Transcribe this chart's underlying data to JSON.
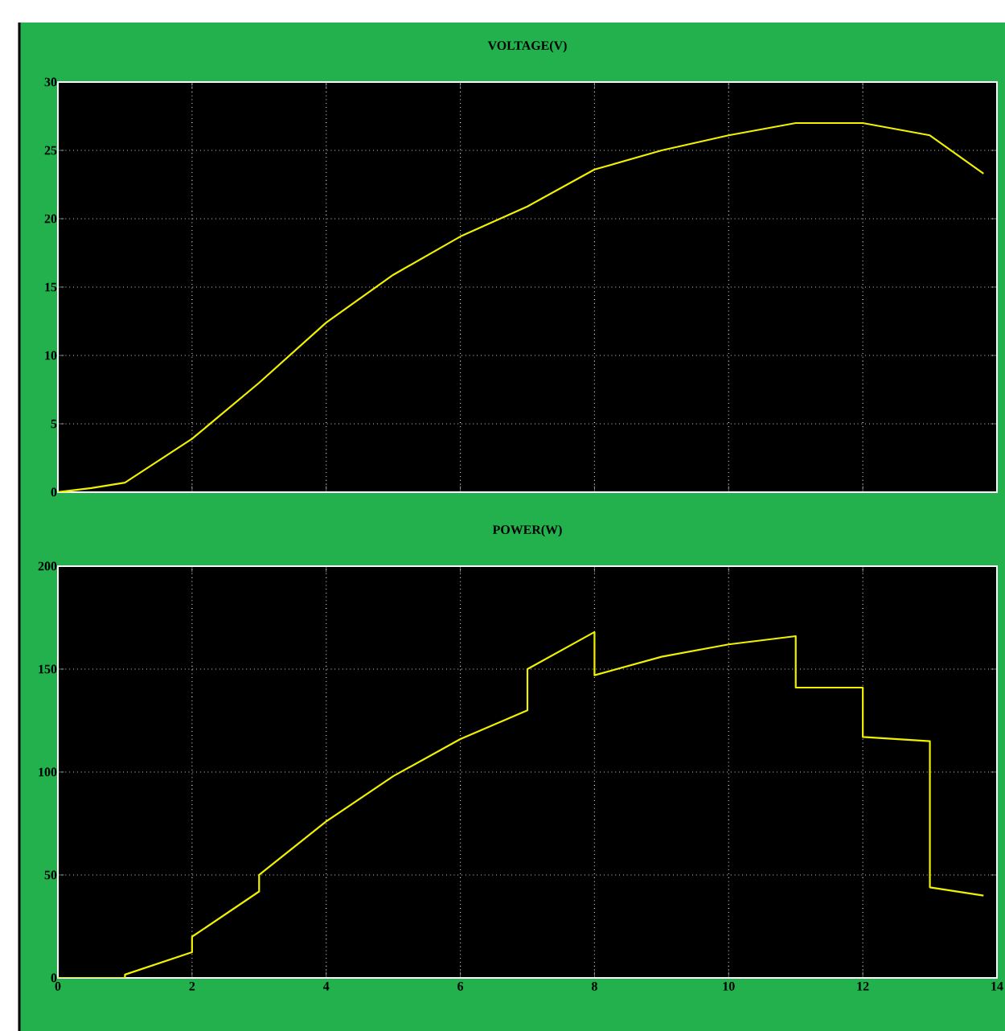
{
  "chart_data": [
    {
      "type": "line",
      "title": "VOLTAGE(V)",
      "xlim": [
        0,
        14
      ],
      "xticks": [
        0,
        2,
        4,
        6,
        8,
        10,
        12,
        14
      ],
      "ylim": [
        0,
        30
      ],
      "yticks": [
        0,
        5,
        10,
        15,
        20,
        25,
        30
      ],
      "grid": true,
      "tick_labels": "y",
      "series": [
        {
          "color": "#f0f000",
          "x": [
            0,
            0.5,
            1,
            2,
            3,
            4,
            5,
            6,
            7,
            8,
            9,
            10,
            11,
            12,
            13,
            13.8
          ],
          "values": [
            0,
            0.3,
            0.7,
            3.9,
            8.0,
            12.4,
            15.9,
            18.7,
            20.9,
            23.6,
            25,
            26.1,
            27,
            27,
            26.1,
            23.3
          ]
        }
      ]
    },
    {
      "type": "line",
      "title": "POWER(W)",
      "xlim": [
        0,
        14
      ],
      "xticks": [
        0,
        2,
        4,
        6,
        8,
        10,
        12,
        14
      ],
      "ylim": [
        0,
        200
      ],
      "yticks": [
        0,
        50,
        100,
        150,
        200
      ],
      "grid": true,
      "series": [
        {
          "color": "#f0f000",
          "x": [
            0,
            1,
            1,
            2,
            2,
            3,
            3,
            4,
            5,
            6,
            7,
            7,
            8,
            8,
            9,
            10,
            11,
            11,
            12,
            12,
            13,
            13,
            13.8
          ],
          "values": [
            0,
            0,
            1.6,
            12.5,
            20,
            42,
            50,
            76,
            98,
            116,
            130,
            150,
            168,
            147,
            156,
            162,
            166,
            141,
            141,
            117,
            115,
            44,
            40
          ]
        }
      ]
    }
  ]
}
